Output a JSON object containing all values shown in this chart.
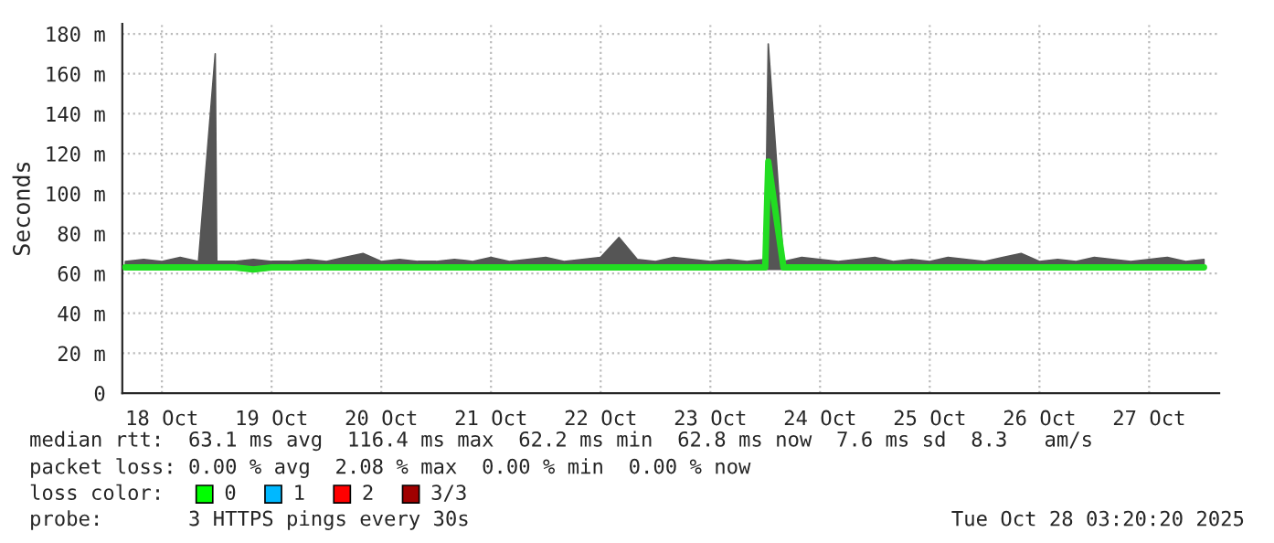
{
  "chart_data": {
    "type": "line",
    "ylabel": "Seconds",
    "x": [
      "2025-10-18T04:00",
      "2025-10-18T08:00",
      "2025-10-18T12:00",
      "2025-10-18T16:00",
      "2025-10-18T20:00",
      "2025-10-18T23:40",
      "2025-10-19T00:00",
      "2025-10-19T04:00",
      "2025-10-19T08:00",
      "2025-10-19T12:00",
      "2025-10-19T16:00",
      "2025-10-19T20:00",
      "2025-10-20T00:00",
      "2025-10-20T04:00",
      "2025-10-20T08:00",
      "2025-10-20T12:00",
      "2025-10-20T16:00",
      "2025-10-20T20:00",
      "2025-10-21T00:00",
      "2025-10-21T04:00",
      "2025-10-21T08:00",
      "2025-10-21T12:00",
      "2025-10-21T16:00",
      "2025-10-21T20:00",
      "2025-10-22T00:00",
      "2025-10-22T04:00",
      "2025-10-22T08:00",
      "2025-10-22T12:00",
      "2025-10-22T16:00",
      "2025-10-22T20:00",
      "2025-10-23T00:00",
      "2025-10-23T04:00",
      "2025-10-23T08:00",
      "2025-10-23T12:00",
      "2025-10-23T16:00",
      "2025-10-23T20:00",
      "2025-10-24T00:00",
      "2025-10-24T00:40",
      "2025-10-24T04:00",
      "2025-10-24T08:00",
      "2025-10-24T12:00",
      "2025-10-24T16:00",
      "2025-10-24T20:00",
      "2025-10-25T00:00",
      "2025-10-25T04:00",
      "2025-10-25T08:00",
      "2025-10-25T12:00",
      "2025-10-25T16:00",
      "2025-10-25T20:00",
      "2025-10-26T00:00",
      "2025-10-26T04:00",
      "2025-10-26T08:00",
      "2025-10-26T12:00",
      "2025-10-26T16:00",
      "2025-10-26T20:00",
      "2025-10-27T00:00",
      "2025-10-27T04:00",
      "2025-10-27T08:00",
      "2025-10-27T12:00",
      "2025-10-27T16:00",
      "2025-10-27T20:00",
      "2025-10-28T00:00"
    ],
    "series": [
      {
        "color": "#22dd22",
        "values": [
          63,
          63,
          63,
          63,
          63,
          63,
          63,
          63,
          62,
          63,
          63,
          63,
          63,
          63,
          63,
          63,
          63,
          63,
          63,
          63,
          63,
          63,
          63,
          63,
          63,
          63,
          63,
          63,
          63,
          63,
          63,
          63,
          63,
          63,
          63,
          63,
          63,
          116,
          63,
          63,
          63,
          63,
          63,
          63,
          63,
          63,
          63,
          63,
          63,
          63,
          63,
          63,
          63,
          63,
          63,
          63,
          63,
          63,
          63,
          63,
          63,
          63
        ],
        "lower": [
          62,
          62,
          62,
          62,
          62,
          62,
          62,
          62,
          61,
          62,
          62,
          62,
          62,
          62,
          62,
          62,
          62,
          62,
          62,
          62,
          62,
          62,
          62,
          62,
          62,
          62,
          62,
          62,
          62,
          62,
          62,
          62,
          62,
          62,
          62,
          62,
          62,
          62,
          62,
          62,
          62,
          62,
          62,
          62,
          62,
          62,
          62,
          62,
          62,
          62,
          62,
          62,
          62,
          62,
          62,
          62,
          62,
          62,
          62,
          62,
          62,
          62
        ],
        "upper": [
          66,
          67,
          66,
          68,
          66,
          170,
          66,
          66,
          67,
          66,
          66,
          67,
          66,
          68,
          70,
          66,
          67,
          66,
          66,
          67,
          66,
          68,
          66,
          67,
          68,
          66,
          67,
          68,
          78,
          67,
          66,
          68,
          67,
          66,
          67,
          66,
          67,
          175,
          66,
          68,
          67,
          66,
          67,
          68,
          66,
          67,
          66,
          68,
          67,
          66,
          68,
          70,
          66,
          67,
          66,
          68,
          67,
          66,
          67,
          68,
          66,
          67
        ]
      }
    ],
    "xlim": [
      "2025-10-18T03:20",
      "2025-10-28T03:20"
    ],
    "xticks": [
      {
        "value": "2025-10-18T12:00",
        "label": "18 Oct"
      },
      {
        "value": "2025-10-19T12:00",
        "label": "19 Oct"
      },
      {
        "value": "2025-10-20T12:00",
        "label": "20 Oct"
      },
      {
        "value": "2025-10-21T12:00",
        "label": "21 Oct"
      },
      {
        "value": "2025-10-22T12:00",
        "label": "22 Oct"
      },
      {
        "value": "2025-10-23T12:00",
        "label": "23 Oct"
      },
      {
        "value": "2025-10-24T12:00",
        "label": "24 Oct"
      },
      {
        "value": "2025-10-25T12:00",
        "label": "25 Oct"
      },
      {
        "value": "2025-10-26T12:00",
        "label": "26 Oct"
      },
      {
        "value": "2025-10-27T12:00",
        "label": "27 Oct"
      }
    ],
    "ylim": [
      0,
      185
    ],
    "yticks": [
      0,
      {
        "value": 20,
        "label": "20 m"
      },
      {
        "value": 40,
        "label": "40 m"
      },
      {
        "value": 60,
        "label": "60 m"
      },
      {
        "value": 80,
        "label": "80 m"
      },
      {
        "value": 100,
        "label": "100 m"
      },
      {
        "value": 120,
        "label": "120 m"
      },
      {
        "value": 140,
        "label": "140 m"
      },
      {
        "value": 160,
        "label": "160 m"
      },
      {
        "value": 180,
        "label": "180 m"
      }
    ],
    "grid": true,
    "legend": false,
    "annotations": [
      "median rtt:  63.1 ms avg  116.4 ms max  62.2 ms min  62.8 ms now  7.6 ms sd  8.3   am/s",
      "packet loss: 0.00 % avg  2.08 % max  0.00 % min  0.00 % now",
      "loss color:",
      "0",
      "1",
      "2",
      "3/3",
      "probe:       3 HTTPS pings every 30s",
      "Tue Oct 28 03:20:20 2025"
    ]
  }
}
